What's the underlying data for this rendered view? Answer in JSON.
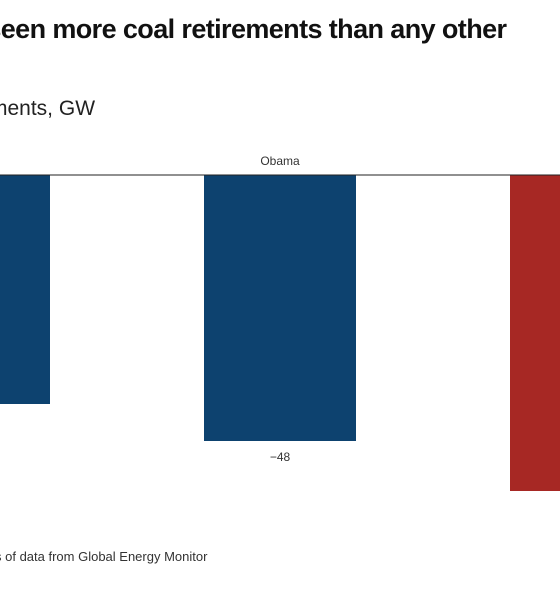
{
  "header": {
    "title": "erseen more coal retirements than any other",
    "subtitle": "ments, GW"
  },
  "footer": {
    "source": "s of data from Global Energy Monitor"
  },
  "colors": {
    "democrat_blue": "#0d426f",
    "republican_red": "#a72824",
    "axis_line": "#222222",
    "label_text": "#333333"
  },
  "chart_data": {
    "type": "bar",
    "orientation": "vertical",
    "baseline": 0,
    "categories": [
      "",
      "Obama",
      ""
    ],
    "series": [
      {
        "values": [
          null,
          -48,
          null
        ],
        "data_labels": [
          "",
          "−48",
          ""
        ],
        "colors": [
          "#0d426f",
          "#0d426f",
          "#a72824"
        ]
      }
    ],
    "xlabel": "",
    "ylabel": "",
    "grid": false,
    "legend": false
  }
}
